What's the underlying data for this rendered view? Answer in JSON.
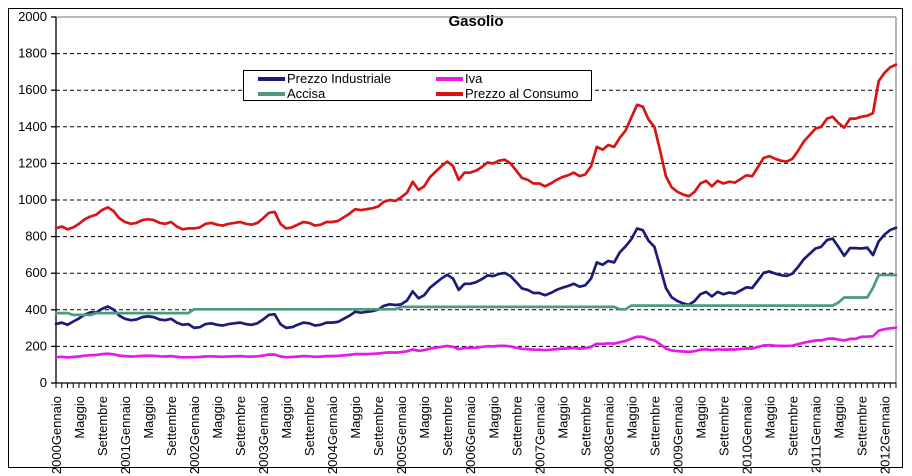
{
  "chart_data": {
    "type": "line",
    "title": "Gasolio",
    "grid": "horizontal-dashed",
    "legend_position": "top-center",
    "ylim": [
      0,
      2000
    ],
    "yticks": [
      0,
      200,
      400,
      600,
      800,
      1000,
      1200,
      1400,
      1600,
      1800,
      2000
    ],
    "x_months_total": 147,
    "x_label_every_n_months": 4,
    "x_ticklabels": [
      "2000Gennaio",
      "Maggio",
      "Settembre",
      "2001Gennaio",
      "Maggio",
      "Settembre",
      "2002Gennaio",
      "Maggio",
      "Settembre",
      "2003Gennaio",
      "Maggio",
      "Settembre",
      "2004Gennaio",
      "Maggio",
      "Settembre",
      "2005Gennaio",
      "Maggio",
      "Settembre",
      "2006Gennaio",
      "Maggio",
      "Settembre",
      "2007Gennaio",
      "Maggio",
      "Settembre",
      "2008Gennaio",
      "Maggio",
      "Settembre",
      "2009Gennaio",
      "Maggio",
      "Settembre",
      "2010Gennaio",
      "Maggio",
      "Settembre",
      "2011Gennaio",
      "Maggio",
      "Settembre",
      "2012Gennaio"
    ],
    "series": [
      {
        "name": "Prezzo Industriale",
        "color": "#1c1c78",
        "values": [
          322,
          330,
          318,
          336,
          353,
          374,
          386,
          385,
          405,
          418,
          401,
          368,
          351,
          343,
          347,
          360,
          364,
          360,
          347,
          343,
          351,
          330,
          318,
          322,
          301,
          305,
          322,
          326,
          318,
          314,
          322,
          326,
          330,
          322,
          318,
          326,
          347,
          372,
          376,
          322,
          301,
          305,
          318,
          330,
          326,
          314,
          318,
          330,
          330,
          334,
          351,
          368,
          389,
          384,
          389,
          393,
          401,
          422,
          430,
          426,
          430,
          451,
          501,
          463,
          480,
          521,
          546,
          571,
          592,
          571,
          509,
          542,
          542,
          551,
          567,
          588,
          584,
          596,
          601,
          584,
          551,
          517,
          509,
          492,
          492,
          480,
          492,
          509,
          521,
          530,
          542,
          526,
          534,
          571,
          659,
          646,
          667,
          659,
          714,
          747,
          785,
          844,
          835,
          777,
          744,
          635,
          519,
          469,
          448,
          435,
          427,
          448,
          485,
          498,
          473,
          498,
          485,
          494,
          489,
          506,
          523,
          519,
          560,
          602,
          610,
          598,
          589,
          585,
          598,
          635,
          677,
          706,
          735,
          744,
          781,
          789,
          743,
          695,
          737,
          737,
          735,
          740,
          699,
          774,
          811,
          836,
          848
        ]
      },
      {
        "name": "Accisa",
        "color": "#4c9b7c",
        "values": [
          382,
          382,
          382,
          372,
          372,
          372,
          372,
          382,
          382,
          382,
          382,
          382,
          382,
          382,
          382,
          382,
          382,
          382,
          382,
          382,
          382,
          382,
          382,
          382,
          403,
          403,
          403,
          403,
          403,
          403,
          403,
          403,
          403,
          403,
          403,
          403,
          403,
          403,
          403,
          403,
          403,
          403,
          403,
          403,
          403,
          403,
          403,
          403,
          403,
          403,
          403,
          403,
          403,
          403,
          403,
          403,
          403,
          403,
          403,
          403,
          416,
          416,
          416,
          416,
          416,
          416,
          416,
          416,
          416,
          416,
          416,
          416,
          416,
          416,
          416,
          416,
          416,
          416,
          416,
          416,
          416,
          416,
          416,
          416,
          416,
          416,
          416,
          416,
          416,
          416,
          416,
          416,
          416,
          416,
          416,
          416,
          416,
          416,
          403,
          403,
          423,
          423,
          423,
          423,
          423,
          423,
          423,
          423,
          423,
          423,
          423,
          423,
          423,
          423,
          423,
          423,
          423,
          423,
          423,
          423,
          423,
          423,
          423,
          423,
          423,
          423,
          423,
          423,
          423,
          423,
          423,
          423,
          423,
          423,
          423,
          423,
          440,
          467,
          467,
          467,
          467,
          467,
          520,
          590,
          590,
          590,
          590
        ]
      },
      {
        "name": "Iva",
        "color": "#e61ae6",
        "values": [
          141,
          143,
          140,
          142,
          145,
          149,
          152,
          153,
          158,
          160,
          157,
          150,
          147,
          145,
          146,
          148,
          149,
          148,
          146,
          145,
          147,
          143,
          140,
          141,
          141,
          142,
          145,
          146,
          144,
          143,
          145,
          146,
          147,
          145,
          144,
          146,
          150,
          155,
          156,
          145,
          141,
          142,
          144,
          147,
          146,
          143,
          144,
          147,
          147,
          148,
          151,
          154,
          158,
          158,
          158,
          159,
          161,
          165,
          167,
          166,
          169,
          173,
          183,
          176,
          179,
          188,
          193,
          198,
          202,
          198,
          185,
          192,
          192,
          193,
          197,
          201,
          200,
          203,
          203,
          200,
          193,
          187,
          185,
          182,
          182,
          179,
          182,
          185,
          188,
          189,
          192,
          188,
          190,
          198,
          215,
          213,
          217,
          215,
          223,
          230,
          242,
          253,
          252,
          240,
          233,
          212,
          188,
          178,
          174,
          172,
          170,
          174,
          182,
          184,
          179,
          184,
          182,
          183,
          183,
          186,
          189,
          188,
          197,
          205,
          207,
          204,
          203,
          202,
          204,
          212,
          220,
          226,
          232,
          233,
          241,
          243,
          237,
          233,
          241,
          241,
          253,
          253,
          256,
          286,
          294,
          299,
          302
        ]
      },
      {
        "name": "Prezzo al Consumo",
        "color": "#d81414",
        "values": [
          845,
          855,
          840,
          850,
          870,
          895,
          910,
          920,
          945,
          960,
          940,
          900,
          880,
          870,
          875,
          890,
          895,
          890,
          875,
          870,
          880,
          855,
          840,
          845,
          845,
          850,
          870,
          875,
          865,
          860,
          870,
          875,
          880,
          870,
          865,
          875,
          900,
          930,
          935,
          870,
          845,
          850,
          865,
          880,
          875,
          860,
          865,
          880,
          880,
          885,
          905,
          925,
          950,
          945,
          950,
          955,
          965,
          990,
          1000,
          995,
          1015,
          1040,
          1100,
          1055,
          1075,
          1125,
          1155,
          1185,
          1210,
          1185,
          1110,
          1150,
          1150,
          1160,
          1180,
          1205,
          1200,
          1215,
          1220,
          1200,
          1160,
          1120,
          1110,
          1090,
          1090,
          1075,
          1090,
          1110,
          1125,
          1135,
          1150,
          1130,
          1140,
          1185,
          1290,
          1275,
          1300,
          1290,
          1340,
          1380,
          1450,
          1520,
          1510,
          1440,
          1400,
          1270,
          1130,
          1070,
          1045,
          1030,
          1020,
          1045,
          1090,
          1105,
          1075,
          1105,
          1090,
          1100,
          1095,
          1115,
          1135,
          1130,
          1180,
          1230,
          1240,
          1225,
          1215,
          1210,
          1225,
          1270,
          1320,
          1355,
          1390,
          1400,
          1445,
          1455,
          1420,
          1395,
          1445,
          1445,
          1455,
          1460,
          1475,
          1650,
          1695,
          1725,
          1740
        ]
      }
    ],
    "style": {
      "plot_border_color": "#909090",
      "axis_color": "#000000",
      "gridline_color": "#000000",
      "background": "#ffffff"
    }
  }
}
